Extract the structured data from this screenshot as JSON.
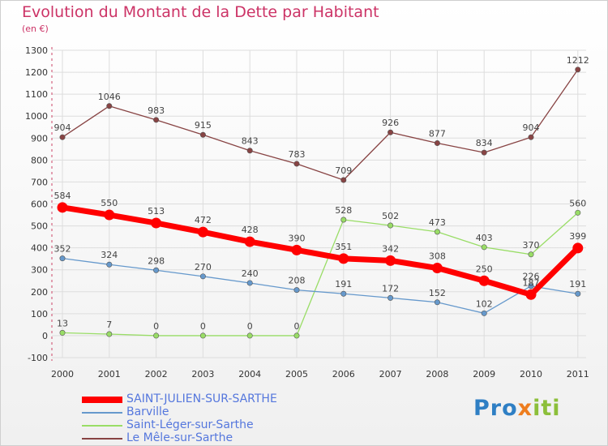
{
  "title": "Evolution du Montant de la Dette par Habitant",
  "unit": "(en €)",
  "logo": {
    "part1": "Pro",
    "part2": "x",
    "part3": "iti"
  },
  "colors": {
    "axis_text": "#333333",
    "grid": "#dddddd",
    "title": "#cc3366"
  },
  "chart_data": {
    "type": "line",
    "title": "Evolution du Montant de la Dette par Habitant",
    "subtitle": "(en €)",
    "x": [
      "2000",
      "2001",
      "2002",
      "2003",
      "2004",
      "2005",
      "2006",
      "2007",
      "2008",
      "2009",
      "2010",
      "2011"
    ],
    "ylim": [
      -100,
      1300
    ],
    "yticks": [
      -100,
      0,
      100,
      200,
      300,
      400,
      500,
      600,
      700,
      800,
      900,
      1000,
      1100,
      1200,
      1300
    ],
    "grid": true,
    "legend_position": "bottom-left",
    "series": [
      {
        "name": "SAINT-JULIEN-SUR-SARTHE",
        "color": "#ff0000",
        "bold": true,
        "values": [
          584,
          550,
          513,
          472,
          428,
          390,
          351,
          342,
          308,
          250,
          187,
          399
        ]
      },
      {
        "name": "Barville",
        "color": "#6699cc",
        "bold": false,
        "values": [
          352,
          324,
          298,
          270,
          240,
          208,
          191,
          172,
          152,
          102,
          226,
          191
        ]
      },
      {
        "name": "Saint-Léger-sur-Sarthe",
        "color": "#99dd66",
        "bold": false,
        "values": [
          13,
          7,
          0,
          0,
          0,
          0,
          528,
          502,
          473,
          403,
          370,
          560
        ]
      },
      {
        "name": "Le Mêle-sur-Sarthe",
        "color": "#884444",
        "bold": false,
        "values": [
          904,
          1046,
          983,
          915,
          843,
          783,
          709,
          926,
          877,
          834,
          904,
          1212
        ]
      }
    ]
  }
}
